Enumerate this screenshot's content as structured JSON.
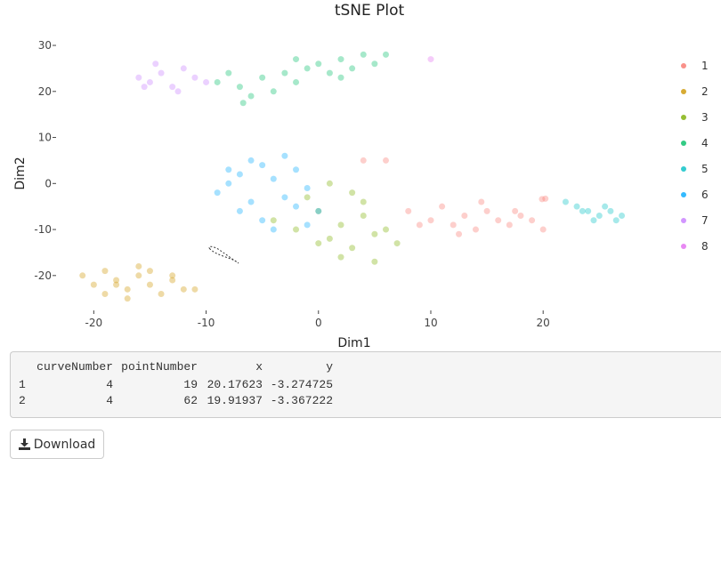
{
  "chart_data": {
    "type": "scatter",
    "title": "tSNE Plot",
    "xlabel": "Dim1",
    "ylabel": "Dim2",
    "xlim": [
      -22.8,
      28.7
    ],
    "ylim": [
      -26.8,
      33.1
    ],
    "xticks": [
      -20,
      -10,
      0,
      10,
      20
    ],
    "yticks": [
      -20,
      -10,
      0,
      10,
      20,
      30
    ],
    "series": [
      {
        "name": "1",
        "color": "#F8766D",
        "x": [
          8,
          10,
          11,
          12,
          13,
          14,
          15,
          16,
          17,
          18,
          19,
          20,
          12.5,
          14.5,
          9,
          17.5,
          20.2,
          19.9,
          4,
          6
        ],
        "y": [
          -6,
          -8,
          -5,
          -9,
          -7,
          -10,
          -6,
          -8,
          -9,
          -7,
          -8,
          -10,
          -11,
          -4,
          -9,
          -6,
          -3.3,
          -3.4,
          5,
          5
        ]
      },
      {
        "name": "2",
        "color": "#CD9600",
        "x": [
          -21,
          -20,
          -19,
          -18,
          -17,
          -16,
          -15,
          -14,
          -13,
          -12,
          -19,
          -17,
          -15,
          -13,
          -18,
          -16,
          -11
        ],
        "y": [
          -20,
          -22,
          -24,
          -21,
          -23,
          -20,
          -22,
          -24,
          -21,
          -23,
          -19,
          -25,
          -19,
          -20,
          -22,
          -18,
          -23
        ]
      },
      {
        "name": "3",
        "color": "#7CAE00",
        "x": [
          -4,
          -2,
          0,
          1,
          2,
          3,
          4,
          5,
          6,
          7,
          2,
          4,
          0,
          3,
          5,
          1,
          -1
        ],
        "y": [
          -8,
          -10,
          -6,
          -12,
          -9,
          -14,
          -7,
          -11,
          -10,
          -13,
          -16,
          -4,
          -13,
          -2,
          -17,
          0,
          -3
        ]
      },
      {
        "name": "4",
        "color": "#00BE67",
        "x": [
          -9,
          -7,
          -5,
          -4,
          -3,
          -2,
          -1,
          0,
          1,
          2,
          3,
          4,
          5,
          6,
          -6,
          -8,
          -2,
          2,
          -6.7
        ],
        "y": [
          22,
          21,
          23,
          20,
          24,
          22,
          25,
          26,
          24,
          27,
          25,
          28,
          26,
          28,
          19,
          24,
          27,
          23,
          17.5
        ]
      },
      {
        "name": "5",
        "color": "#00BFC4",
        "x": [
          22,
          23,
          24,
          25,
          26,
          27,
          24.5,
          25.5,
          26.5,
          23.5
        ],
        "y": [
          -4,
          -5,
          -6,
          -7,
          -6,
          -7,
          -8,
          -5,
          -8,
          -6
        ]
      },
      {
        "name": "6",
        "color": "#00A9FF",
        "x": [
          -9,
          -8,
          -7,
          -6,
          -5,
          -4,
          -3,
          -2,
          -1,
          0,
          -7,
          -5,
          -3,
          -6,
          -4,
          -8,
          -1,
          -2
        ],
        "y": [
          -2,
          0,
          2,
          -4,
          4,
          1,
          -3,
          3,
          -1,
          -6,
          -6,
          -8,
          6,
          5,
          -10,
          3,
          -9,
          -5
        ]
      },
      {
        "name": "7",
        "color": "#C77CFF",
        "x": [
          -16,
          -15,
          -14,
          -13,
          -12,
          -11,
          -10,
          -14.5,
          -12.5,
          -15.5
        ],
        "y": [
          23,
          22,
          24,
          21,
          25,
          23,
          22,
          26,
          20,
          21
        ]
      },
      {
        "name": "8",
        "color": "#E26CF0",
        "x": [
          10
        ],
        "y": [
          27
        ]
      }
    ]
  },
  "selection_table": {
    "columns": [
      "curveNumber",
      "pointNumber",
      "x",
      "y"
    ],
    "rows": [
      [
        "1",
        "4",
        "19",
        "20.17623",
        "-3.274725"
      ],
      [
        "2",
        "4",
        "62",
        "19.91937",
        "-3.367222"
      ]
    ]
  },
  "download_button": {
    "label": "Download"
  }
}
